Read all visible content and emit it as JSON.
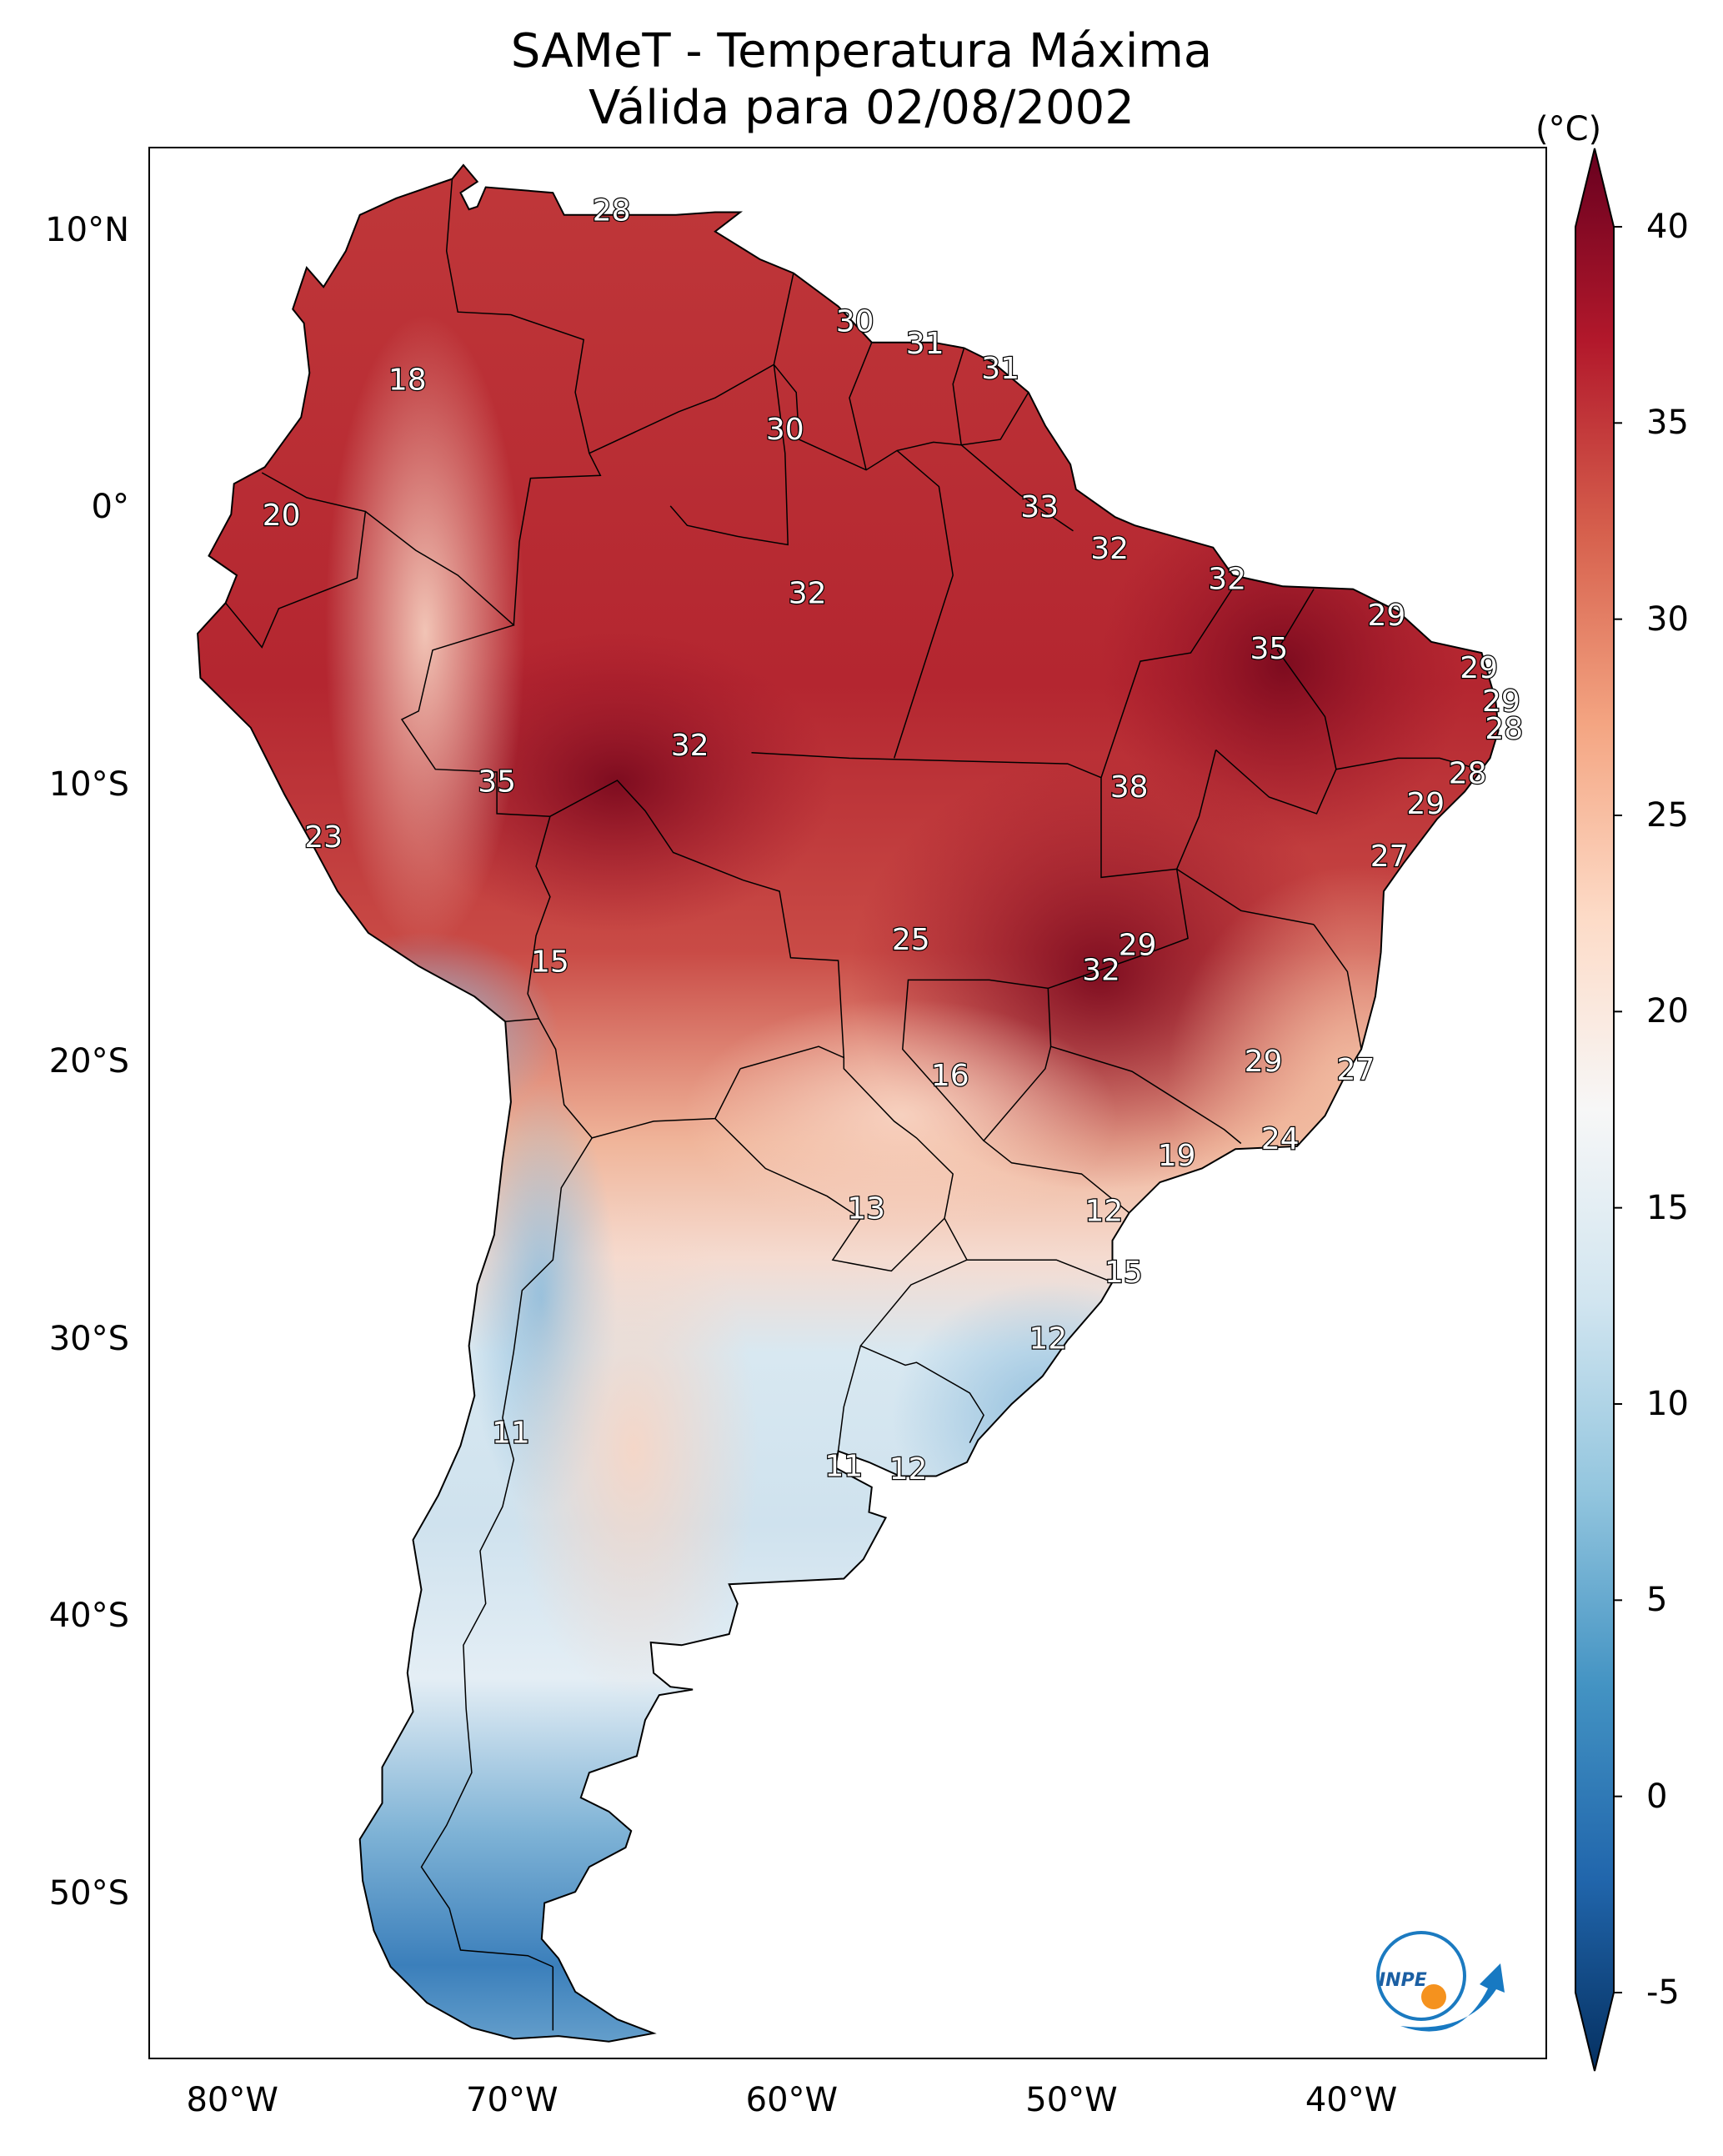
{
  "title": {
    "line1": "SAMeT - Temperatura Máxima",
    "line2": "Válida para 02/08/2002"
  },
  "axes": {
    "lat_ticks": [
      {
        "value": 10,
        "label": "10°N"
      },
      {
        "value": 0,
        "label": "0°"
      },
      {
        "value": -10,
        "label": "10°S"
      },
      {
        "value": -20,
        "label": "20°S"
      },
      {
        "value": -30,
        "label": "30°S"
      },
      {
        "value": -40,
        "label": "40°S"
      },
      {
        "value": -50,
        "label": "50°S"
      }
    ],
    "lon_ticks": [
      {
        "value": -80,
        "label": "80°W"
      },
      {
        "value": -70,
        "label": "70°W"
      },
      {
        "value": -60,
        "label": "60°W"
      },
      {
        "value": -50,
        "label": "50°W"
      },
      {
        "value": -40,
        "label": "40°W"
      }
    ],
    "extent": {
      "lon_min": -83,
      "lon_max": -33,
      "lat_min": -56,
      "lat_max": 13
    }
  },
  "colorbar": {
    "unit": "(°C)",
    "ticks": [
      {
        "value": 40,
        "label": "40"
      },
      {
        "value": 35,
        "label": "35"
      },
      {
        "value": 30,
        "label": "30"
      },
      {
        "value": 25,
        "label": "25"
      },
      {
        "value": 20,
        "label": "20"
      },
      {
        "value": 15,
        "label": "15"
      },
      {
        "value": 10,
        "label": "10"
      },
      {
        "value": 5,
        "label": "5"
      },
      {
        "value": 0,
        "label": "0"
      },
      {
        "value": -5,
        "label": "-5"
      }
    ],
    "range": [
      -5,
      40
    ],
    "colors": [
      "#053061",
      "#2166ac",
      "#4393c3",
      "#92c5de",
      "#d1e5f0",
      "#f7f7f7",
      "#fddbc7",
      "#f4a582",
      "#d6604d",
      "#b2182b",
      "#67001f"
    ]
  },
  "temperature_labels": [
    {
      "value": "28",
      "lon": -66.5,
      "lat": 10.7
    },
    {
      "value": "30",
      "lon": -57.8,
      "lat": 6.7
    },
    {
      "value": "31",
      "lon": -55.3,
      "lat": 5.9
    },
    {
      "value": "31",
      "lon": -52.6,
      "lat": 5.0
    },
    {
      "value": "18",
      "lon": -73.8,
      "lat": 4.6
    },
    {
      "value": "30",
      "lon": -60.3,
      "lat": 2.8
    },
    {
      "value": "20",
      "lon": -78.3,
      "lat": -0.3
    },
    {
      "value": "33",
      "lon": -51.2,
      "lat": 0.0
    },
    {
      "value": "32",
      "lon": -48.7,
      "lat": -1.5
    },
    {
      "value": "32",
      "lon": -59.5,
      "lat": -3.1
    },
    {
      "value": "32",
      "lon": -44.5,
      "lat": -2.6
    },
    {
      "value": "29",
      "lon": -38.8,
      "lat": -3.9
    },
    {
      "value": "35",
      "lon": -43.0,
      "lat": -5.1
    },
    {
      "value": "29",
      "lon": -35.5,
      "lat": -5.8
    },
    {
      "value": "29",
      "lon": -34.7,
      "lat": -7.0
    },
    {
      "value": "28",
      "lon": -34.6,
      "lat": -8.0
    },
    {
      "value": "32",
      "lon": -63.7,
      "lat": -8.6
    },
    {
      "value": "35",
      "lon": -70.6,
      "lat": -9.9
    },
    {
      "value": "38",
      "lon": -48.0,
      "lat": -10.1
    },
    {
      "value": "28",
      "lon": -35.9,
      "lat": -9.6
    },
    {
      "value": "29",
      "lon": -37.4,
      "lat": -10.7
    },
    {
      "value": "23",
      "lon": -76.8,
      "lat": -11.9
    },
    {
      "value": "27",
      "lon": -38.7,
      "lat": -12.6
    },
    {
      "value": "25",
      "lon": -55.8,
      "lat": -15.6
    },
    {
      "value": "29",
      "lon": -47.7,
      "lat": -15.8
    },
    {
      "value": "32",
      "lon": -49.0,
      "lat": -16.7
    },
    {
      "value": "15",
      "lon": -68.7,
      "lat": -16.4
    },
    {
      "value": "29",
      "lon": -43.2,
      "lat": -20.0
    },
    {
      "value": "27",
      "lon": -39.9,
      "lat": -20.3
    },
    {
      "value": "16",
      "lon": -54.4,
      "lat": -20.5
    },
    {
      "value": "24",
      "lon": -42.6,
      "lat": -22.8
    },
    {
      "value": "19",
      "lon": -46.3,
      "lat": -23.4
    },
    {
      "value": "13",
      "lon": -57.4,
      "lat": -25.3
    },
    {
      "value": "12",
      "lon": -48.9,
      "lat": -25.4
    },
    {
      "value": "15",
      "lon": -48.2,
      "lat": -27.6
    },
    {
      "value": "12",
      "lon": -50.9,
      "lat": -30.0
    },
    {
      "value": "11",
      "lon": -70.1,
      "lat": -33.4
    },
    {
      "value": "11",
      "lon": -58.2,
      "lat": -34.6
    },
    {
      "value": "12",
      "lon": -55.9,
      "lat": -34.7
    }
  ],
  "logo": {
    "text": "INPE"
  }
}
